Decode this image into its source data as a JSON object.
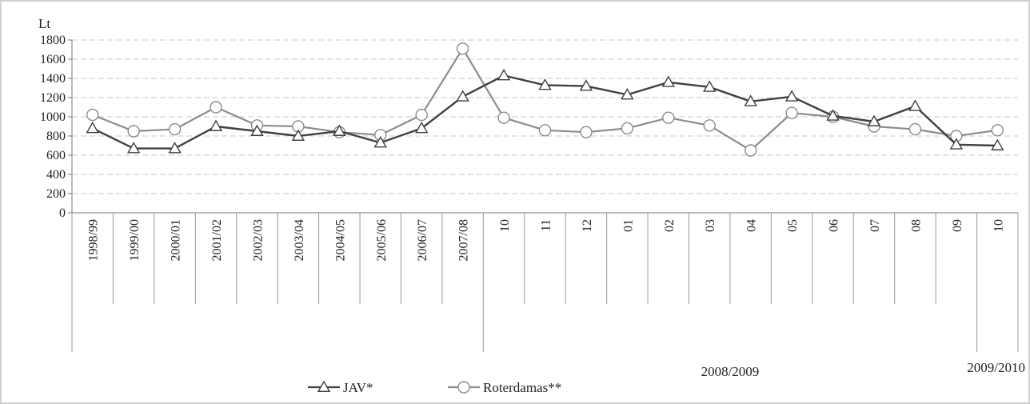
{
  "chart_data": {
    "type": "line",
    "unit_label": "Lt",
    "ylim": [
      0,
      1800
    ],
    "y_ticks": [
      0,
      200,
      400,
      600,
      800,
      1000,
      1200,
      1400,
      1600,
      1800
    ],
    "grid": "horizontal dashed",
    "legend_position": "bottom",
    "categories": [
      "1998/99",
      "1999/00",
      "2000/01",
      "2001/02",
      "2002/03",
      "2003/04",
      "2004/05",
      "2005/06",
      "2006/07",
      "2007/08",
      "10",
      "11",
      "12",
      "01",
      "02",
      "03",
      "04",
      "05",
      "06",
      "07",
      "08",
      "09",
      "10"
    ],
    "category_groups": [
      {
        "label": "",
        "start": 0,
        "end": 9
      },
      {
        "label": "2008/2009",
        "start": 10,
        "end": 21
      },
      {
        "label": "2009/2010",
        "start": 22,
        "end": 22
      }
    ],
    "series": [
      {
        "name": "JAV*",
        "marker": "triangle",
        "color": "#404040",
        "values": [
          880,
          670,
          670,
          900,
          850,
          800,
          850,
          730,
          880,
          1210,
          1430,
          1330,
          1320,
          1230,
          1360,
          1310,
          1160,
          1210,
          1010,
          950,
          1110,
          710,
          700
        ]
      },
      {
        "name": "Roterdamas**",
        "marker": "circle",
        "color": "#8c8c8c",
        "values": [
          1020,
          850,
          870,
          1100,
          910,
          900,
          840,
          810,
          1020,
          1710,
          990,
          860,
          840,
          880,
          990,
          910,
          650,
          1040,
          1000,
          900,
          870,
          800,
          860
        ]
      }
    ]
  }
}
